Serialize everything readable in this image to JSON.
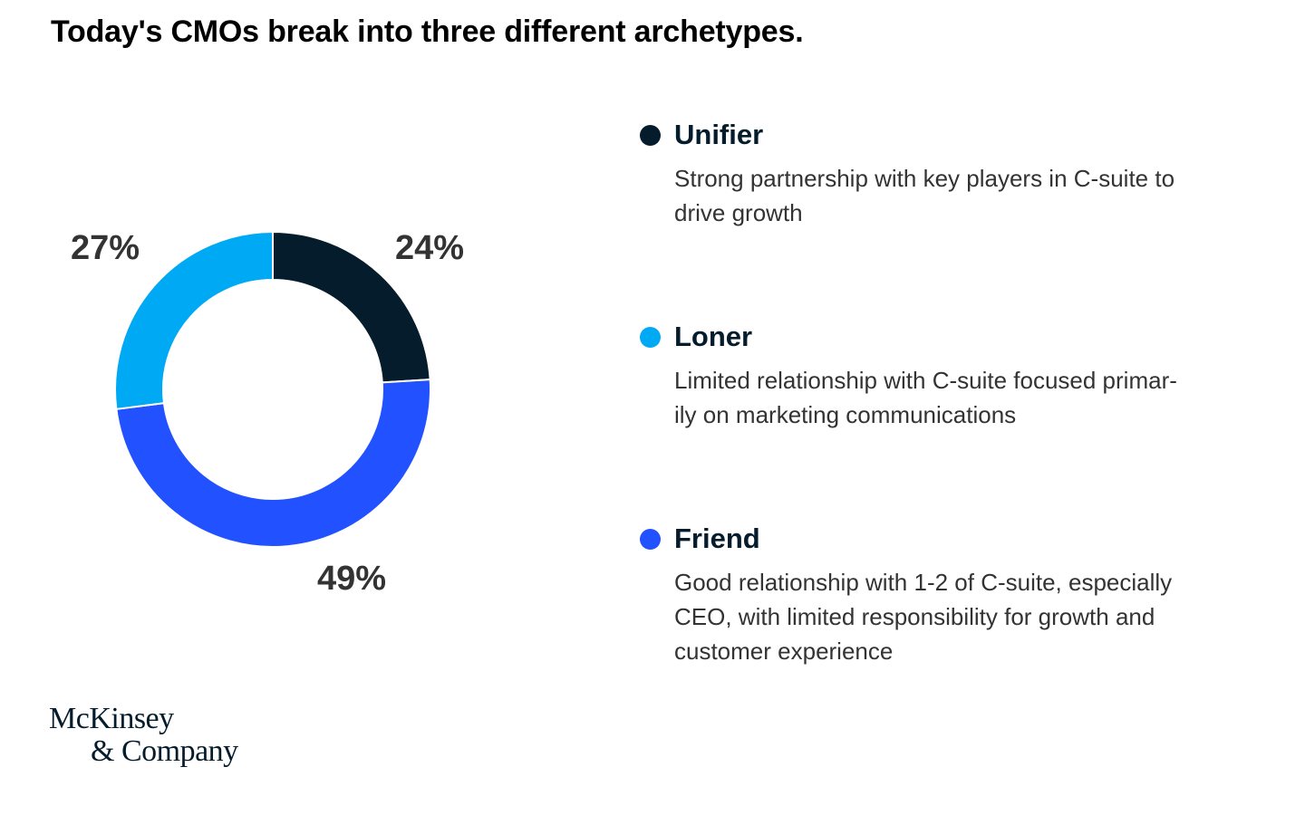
{
  "title": "Today's CMOs break into three different archetypes.",
  "chart_data": {
    "type": "pie",
    "donut": true,
    "slices": [
      {
        "label": "Unifier",
        "value": 24,
        "display": "24%",
        "color": "#051c2c"
      },
      {
        "label": "Friend",
        "value": 49,
        "display": "49%",
        "color": "#2251ff"
      },
      {
        "label": "Loner",
        "value": 27,
        "display": "27%",
        "color": "#00a9f4"
      }
    ]
  },
  "legend": [
    {
      "name": "Unifier",
      "color": "#051c2c",
      "desc_lines": [
        "Strong partnership with key players in C-suite to",
        "drive growth"
      ]
    },
    {
      "name": "Loner",
      "color": "#00a9f4",
      "desc_lines": [
        "Limited relationship with C-suite focused primar-",
        "ily on marketing communications"
      ]
    },
    {
      "name": "Friend",
      "color": "#2251ff",
      "desc_lines": [
        "Good relationship with 1-2 of C-suite, especially",
        "CEO, with limited responsibility for growth and",
        "customer experience"
      ]
    }
  ],
  "logo": {
    "line1": "McKinsey",
    "line2": "& Company"
  }
}
